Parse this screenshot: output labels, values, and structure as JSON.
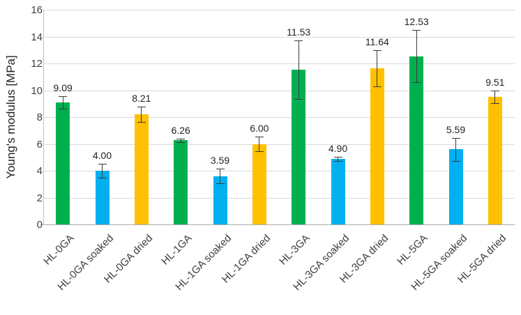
{
  "chart_data": {
    "type": "bar",
    "title": "",
    "xlabel": "",
    "ylabel": "Young's modulus [MPa]",
    "ylim": [
      0,
      16
    ],
    "yticks": [
      0,
      2,
      4,
      6,
      8,
      10,
      12,
      14,
      16
    ],
    "grid": true,
    "legend": "none",
    "categories": [
      "HL-0GA",
      "HL-0GA soaked",
      "HL-0GA dried",
      "HL-1GA",
      "HL-1GA soaked",
      "HL-1GA dried",
      "HL-3GA",
      "HL-3GA soaked",
      "HL-3GA dried",
      "HL-5GA",
      "HL-5GA soaked",
      "HL-5GA dried"
    ],
    "values": [
      9.09,
      4.0,
      8.21,
      6.26,
      3.59,
      6.0,
      11.53,
      4.9,
      11.64,
      12.53,
      5.59,
      9.51
    ],
    "value_labels": [
      "9.09",
      "4.00",
      "8.21",
      "6.26",
      "3.59",
      "6.00",
      "11.53",
      "4.90",
      "11.64",
      "12.53",
      "5.59",
      "9.51"
    ],
    "errors": [
      0.45,
      0.5,
      0.55,
      0.12,
      0.55,
      0.55,
      2.2,
      0.15,
      1.35,
      1.95,
      0.85,
      0.45
    ],
    "bar_colors": [
      "#00B050",
      "#00B0F0",
      "#FFC000",
      "#00B050",
      "#00B0F0",
      "#FFC000",
      "#00B050",
      "#00B0F0",
      "#FFC000",
      "#00B050",
      "#00B0F0",
      "#FFC000"
    ],
    "color_legend_meaning": {
      "base": "#00B050",
      "soaked": "#00B0F0",
      "dried": "#FFC000"
    },
    "style_colors": {
      "grid": "#d9d9d9",
      "axis": "#ababab",
      "error_bar": "#3a3a3a",
      "text": "#404040"
    }
  }
}
